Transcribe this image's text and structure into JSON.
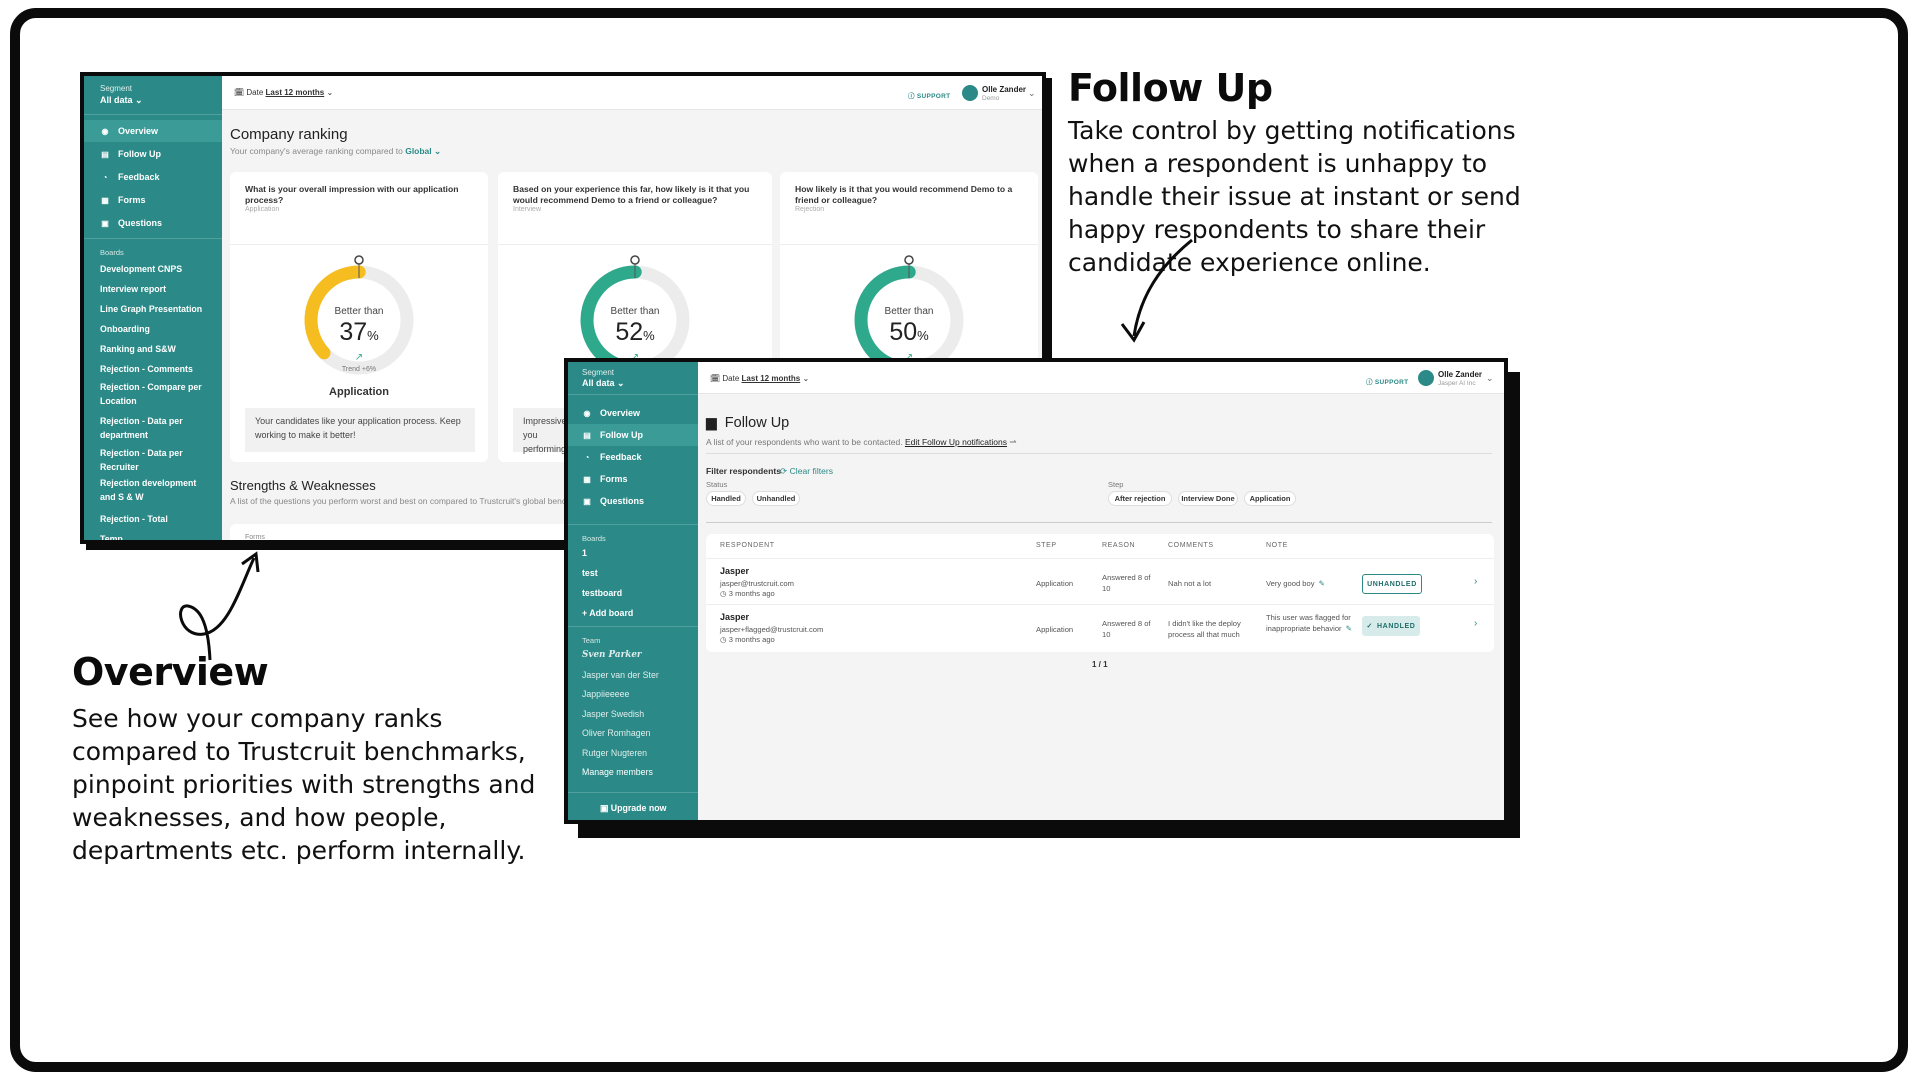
{
  "followup_section": {
    "title": "Follow Up",
    "body": "Take control by getting notifications when a respondent is unhappy to  handle their issue at instant or send happy respondents to share their candidate experience online."
  },
  "overview_section": {
    "title": "Overview",
    "body": "See how your company ranks compared to Trustcruit benchmarks, pinpoint priorities with strengths and weaknesses, and how people, departments etc. perform internally."
  },
  "overview_app": {
    "segment_label": "Segment",
    "segment_value": "All data",
    "nav": [
      "Overview",
      "Follow Up",
      "Feedback",
      "Forms",
      "Questions"
    ],
    "boards_label": "Boards",
    "boards": [
      "Development CNPS",
      "Interview report",
      "Line Graph Presentation",
      "Onboarding",
      "Ranking and S&W",
      "Rejection - Comments",
      "Rejection - Compare per Location",
      "Rejection - Data per department",
      "Rejection - Data per Recruiter",
      "Rejection development and S & W",
      "Rejection - Total",
      "Temp"
    ],
    "date_prefix": "Date",
    "date_value": "Last 12 months",
    "support": "SUPPORT",
    "user_name": "Olle Zander",
    "user_org": "Demo",
    "title": "Company ranking",
    "subtitle_prefix": "Your company's average ranking compared to",
    "subtitle_link": "Global",
    "cards": [
      {
        "question": "What is your overall impression with our application process?",
        "tag": "Application",
        "better": "Better than",
        "pct": "37",
        "pct_value": 37,
        "trend": "Trend +6%",
        "category": "Application",
        "note": "Your candidates like your application process. Keep working to make it better!",
        "color": "#f5bd1f"
      },
      {
        "question": "Based on your experience this far, how likely is it that you would recommend Demo to a friend or colleague?",
        "tag": "Interview",
        "better": "Better than",
        "pct": "52",
        "pct_value": 52,
        "note": "Impressive, you performing!",
        "color": "#2fa98b"
      },
      {
        "question": "How likely is it that you would recommend Demo to a friend or colleague?",
        "tag": "Rejection",
        "better": "Better than",
        "pct": "50",
        "pct_value": 50,
        "color": "#2fa98b"
      }
    ],
    "sw_title": "Strengths & Weaknesses",
    "sw_sub": "A list of the questions you perform worst and best on compared to Trustcruit's global benchmar",
    "forms_label": "Forms"
  },
  "followup_app": {
    "segment_label": "Segment",
    "segment_value": "All data",
    "nav": [
      "Overview",
      "Follow Up",
      "Feedback",
      "Forms",
      "Questions"
    ],
    "boards_label": "Boards",
    "boards": [
      "1",
      "test",
      "testboard",
      "+ Add board"
    ],
    "team_label": "Team",
    "team": [
      "Sven Parker",
      "Jasper van der Ster",
      "Jappiieeeee",
      "Jasper Swedish",
      "Oliver Romhagen",
      "Rutger Nugteren",
      "Manage members"
    ],
    "upgrade": "Upgrade now",
    "date_prefix": "Date",
    "date_value": "Last 12 months",
    "support": "SUPPORT",
    "user_name": "Olle Zander",
    "user_org": "Jasper AI Inc",
    "title": "Follow Up",
    "subtitle": "A list of your respondents who want to be contacted.",
    "subtitle_link": "Edit Follow Up notifications",
    "filter_title": "Filter respondents",
    "clear_filters": "Clear filters",
    "status_label": "Status",
    "status_chips": [
      "Handled",
      "Unhandled"
    ],
    "step_label": "Step",
    "step_chips": [
      "After rejection",
      "Interview Done",
      "Application"
    ],
    "columns": [
      "RESPONDENT",
      "STEP",
      "REASON",
      "COMMENTS",
      "NOTE"
    ],
    "rows": [
      {
        "name": "Jasper",
        "email": "jasper@trustcruit.com",
        "ago": "3 months ago",
        "step": "Application",
        "reason": "Answered 8 of 10",
        "comment": "Nah not a lot",
        "note": "Very good boy",
        "status": "UNHANDLED"
      },
      {
        "name": "Jasper",
        "email": "jasper+flagged@trustcruit.com",
        "ago": "3 months ago",
        "step": "Application",
        "reason": "Answered 8 of 10",
        "comment": "I didn't like the deploy process all that much",
        "note": "This user was flagged for inappropriate behavior",
        "status": "HANDLED"
      }
    ],
    "pagination": "1 / 1"
  },
  "colors": {
    "teal": "#2b8a87",
    "yellow": "#f5bd1f",
    "green": "#2fa98b"
  }
}
